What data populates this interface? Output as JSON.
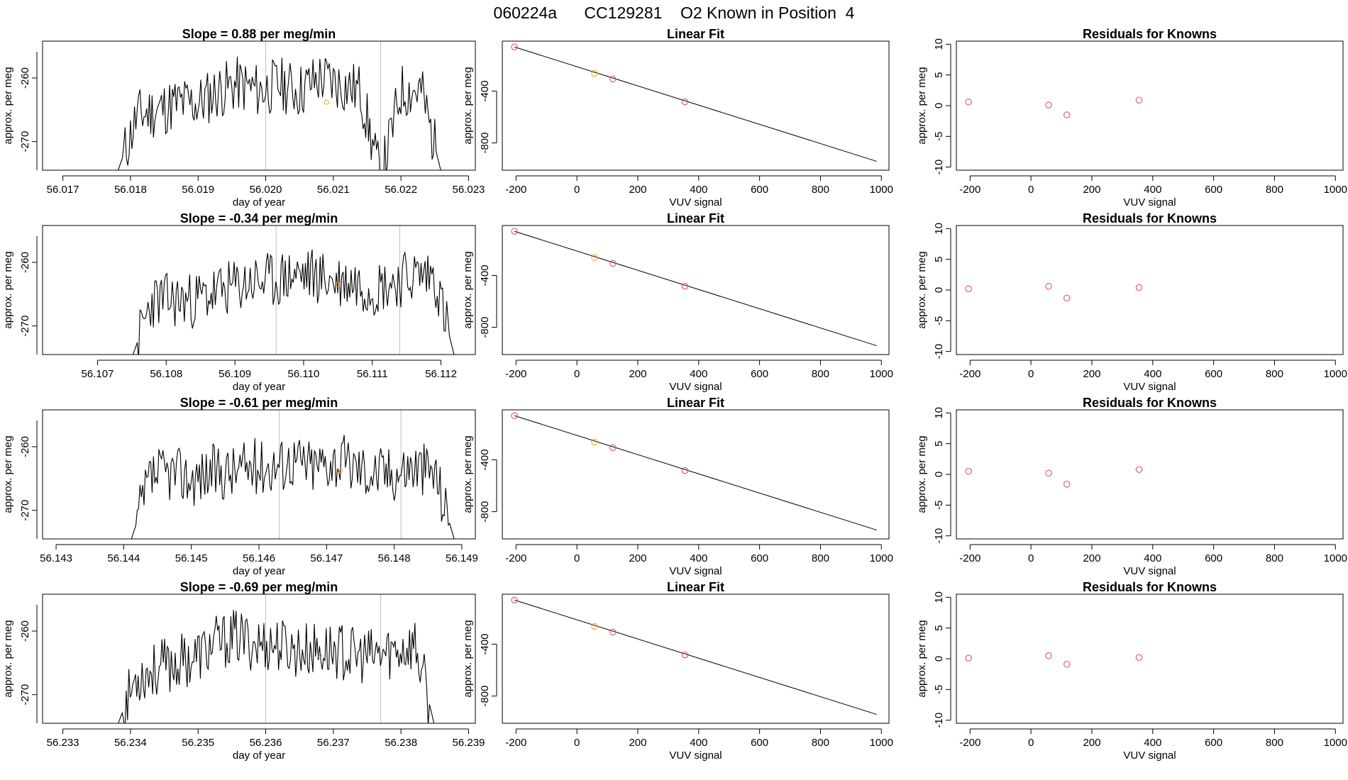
{
  "page_title": "060224a      CC129281    O2 Known in Position  4",
  "colors": {
    "line": "#000000",
    "grid": "#bebebe",
    "known_point": "#df536b",
    "highlight_point": "#f5a623"
  },
  "chart_data": [
    {
      "type": "line",
      "panel": "timeseries-1",
      "title": "Slope =  0.88  per meg/min",
      "xlabel": "day of year",
      "ylabel": "approx. per meg",
      "xlim": [
        56.0167,
        56.0231
      ],
      "ylim": [
        -274.5,
        -254.2
      ],
      "xticks": [
        {
          "v": 56.017,
          "t": "56.017"
        },
        {
          "v": 56.018,
          "t": "56.018"
        },
        {
          "v": 56.019,
          "t": "56.019"
        },
        {
          "v": 56.02,
          "t": "56.020"
        },
        {
          "v": 56.021,
          "t": "56.021"
        },
        {
          "v": 56.022,
          "t": "56.022"
        },
        {
          "v": 56.023,
          "t": "56.023"
        }
      ],
      "yticks": [
        {
          "v": -270,
          "t": "-270"
        },
        {
          "v": -260,
          "t": "-260"
        }
      ],
      "vlines": [
        56.02,
        56.0217
      ],
      "highlight": {
        "x": 56.0209,
        "y": -263.8
      },
      "series": [
        {
          "x_start": 56.0178,
          "x_end": 56.0226,
          "seed": 11,
          "base": [
            -275,
            -266,
            -265,
            -264,
            -264,
            -262,
            -261,
            -262,
            -261,
            -262,
            -260,
            -261,
            -262,
            -276,
            -262,
            -262,
            -275
          ]
        }
      ]
    },
    {
      "type": "scatter",
      "panel": "linear-fit-1",
      "title": "Linear Fit",
      "xlabel": "VUV signal",
      "ylabel": "approx. per meg",
      "xlim": [
        -245,
        1025
      ],
      "ylim": [
        -1010,
        -15
      ],
      "xticks": [
        {
          "v": -200,
          "t": "-200"
        },
        {
          "v": 0,
          "t": "0"
        },
        {
          "v": 200,
          "t": "200"
        },
        {
          "v": 400,
          "t": "400"
        },
        {
          "v": 600,
          "t": "600"
        },
        {
          "v": 800,
          "t": "800"
        },
        {
          "v": 1000,
          "t": "1000"
        }
      ],
      "yticks": [
        {
          "v": -800,
          "t": "-800"
        },
        {
          "v": -400,
          "t": "-400"
        }
      ],
      "fit_line": [
        [
          -205,
          -60
        ],
        [
          985,
          -942
        ]
      ],
      "points": [
        {
          "x": -205,
          "y": -60,
          "c": "known"
        },
        {
          "x": 58,
          "y": -263,
          "c": "highlight"
        },
        {
          "x": 118,
          "y": -307,
          "c": "known"
        },
        {
          "x": 355,
          "y": -483,
          "c": "known"
        }
      ]
    },
    {
      "type": "scatter",
      "panel": "residuals-1",
      "title": "Residuals for Knowns",
      "xlabel": "VUV signal",
      "ylabel": "approx. per meg",
      "xlim": [
        -245,
        1025
      ],
      "ylim": [
        -10.5,
        10.5
      ],
      "xticks": [
        {
          "v": -200,
          "t": "-200"
        },
        {
          "v": 0,
          "t": "0"
        },
        {
          "v": 200,
          "t": "200"
        },
        {
          "v": 400,
          "t": "400"
        },
        {
          "v": 600,
          "t": "600"
        },
        {
          "v": 800,
          "t": "800"
        },
        {
          "v": 1000,
          "t": "1000"
        }
      ],
      "yticks": [
        {
          "v": -10,
          "t": "-10"
        },
        {
          "v": -5,
          "t": "-5"
        },
        {
          "v": 0,
          "t": "0"
        },
        {
          "v": 5,
          "t": "5"
        },
        {
          "v": 10,
          "t": "10"
        }
      ],
      "points": [
        {
          "x": -205,
          "y": 0.6
        },
        {
          "x": 58,
          "y": 0.1
        },
        {
          "x": 118,
          "y": -1.5
        },
        {
          "x": 355,
          "y": 0.9
        }
      ]
    },
    {
      "type": "line",
      "panel": "timeseries-2",
      "title": "Slope =  -0.34  per meg/min",
      "xlabel": "day of year",
      "ylabel": "approx. per meg",
      "xlim": [
        56.1062,
        56.1125
      ],
      "ylim": [
        -274.5,
        -254.2
      ],
      "xticks": [
        {
          "v": 56.107,
          "t": "56.107"
        },
        {
          "v": 56.108,
          "t": "56.108"
        },
        {
          "v": 56.109,
          "t": "56.109"
        },
        {
          "v": 56.11,
          "t": "56.110"
        },
        {
          "v": 56.111,
          "t": "56.111"
        },
        {
          "v": 56.112,
          "t": "56.112"
        }
      ],
      "yticks": [
        {
          "v": -270,
          "t": "-270"
        },
        {
          "v": -260,
          "t": "-260"
        }
      ],
      "vlines": [
        56.1096,
        56.1114
      ],
      "highlight": {
        "x": 56.1105,
        "y": -263.5
      },
      "series": [
        {
          "x_start": 56.1075,
          "x_end": 56.1122,
          "seed": 23,
          "base": [
            -275,
            -266,
            -266,
            -266,
            -265,
            -264,
            -263,
            -263,
            -262,
            -262,
            -263,
            -263,
            -264,
            -263,
            -262,
            -262,
            -275
          ]
        }
      ]
    },
    {
      "type": "scatter",
      "panel": "linear-fit-2",
      "title": "Linear Fit",
      "xlabel": "VUV signal",
      "ylabel": "approx. per meg",
      "xlim": [
        -245,
        1025
      ],
      "ylim": [
        -1010,
        -15
      ],
      "xticks": [
        {
          "v": -200,
          "t": "-200"
        },
        {
          "v": 0,
          "t": "0"
        },
        {
          "v": 200,
          "t": "200"
        },
        {
          "v": 400,
          "t": "400"
        },
        {
          "v": 600,
          "t": "600"
        },
        {
          "v": 800,
          "t": "800"
        },
        {
          "v": 1000,
          "t": "1000"
        }
      ],
      "yticks": [
        {
          "v": -800,
          "t": "-800"
        },
        {
          "v": -400,
          "t": "-400"
        }
      ],
      "fit_line": [
        [
          -205,
          -60
        ],
        [
          985,
          -942
        ]
      ],
      "points": [
        {
          "x": -205,
          "y": -60,
          "c": "known"
        },
        {
          "x": 58,
          "y": -263,
          "c": "highlight"
        },
        {
          "x": 118,
          "y": -307,
          "c": "known"
        },
        {
          "x": 355,
          "y": -483,
          "c": "known"
        }
      ]
    },
    {
      "type": "scatter",
      "panel": "residuals-2",
      "title": "Residuals for Knowns",
      "xlabel": "VUV signal",
      "ylabel": "approx. per meg",
      "xlim": [
        -245,
        1025
      ],
      "ylim": [
        -10.5,
        10.5
      ],
      "xticks": [
        {
          "v": -200,
          "t": "-200"
        },
        {
          "v": 0,
          "t": "0"
        },
        {
          "v": 200,
          "t": "200"
        },
        {
          "v": 400,
          "t": "400"
        },
        {
          "v": 600,
          "t": "600"
        },
        {
          "v": 800,
          "t": "800"
        },
        {
          "v": 1000,
          "t": "1000"
        }
      ],
      "yticks": [
        {
          "v": -10,
          "t": "-10"
        },
        {
          "v": -5,
          "t": "-5"
        },
        {
          "v": 0,
          "t": "0"
        },
        {
          "v": 5,
          "t": "5"
        },
        {
          "v": 10,
          "t": "10"
        }
      ],
      "points": [
        {
          "x": -205,
          "y": 0.2
        },
        {
          "x": 58,
          "y": 0.6
        },
        {
          "x": 118,
          "y": -1.3
        },
        {
          "x": 355,
          "y": 0.4
        }
      ]
    },
    {
      "type": "line",
      "panel": "timeseries-3",
      "title": "Slope =  -0.61  per meg/min",
      "xlabel": "day of year",
      "ylabel": "approx. per meg",
      "xlim": [
        56.1428,
        56.1492
      ],
      "ylim": [
        -274.5,
        -254.2
      ],
      "xticks": [
        {
          "v": 56.143,
          "t": "56.143"
        },
        {
          "v": 56.144,
          "t": "56.144"
        },
        {
          "v": 56.145,
          "t": "56.145"
        },
        {
          "v": 56.146,
          "t": "56.146"
        },
        {
          "v": 56.147,
          "t": "56.147"
        },
        {
          "v": 56.148,
          "t": "56.148"
        },
        {
          "v": 56.149,
          "t": "56.149"
        }
      ],
      "yticks": [
        {
          "v": -270,
          "t": "-270"
        },
        {
          "v": -260,
          "t": "-260"
        }
      ],
      "vlines": [
        56.1463,
        56.1481
      ],
      "highlight": {
        "x": 56.1472,
        "y": -263.8
      },
      "series": [
        {
          "x_start": 56.1441,
          "x_end": 56.1489,
          "seed": 37,
          "base": [
            -275,
            -265,
            -264,
            -265,
            -264,
            -264,
            -263,
            -263,
            -262,
            -263,
            -262,
            -263,
            -264,
            -264,
            -263,
            -264,
            -275
          ]
        }
      ]
    },
    {
      "type": "scatter",
      "panel": "linear-fit-3",
      "title": "Linear Fit",
      "xlabel": "VUV signal",
      "ylabel": "approx. per meg",
      "xlim": [
        -245,
        1025
      ],
      "ylim": [
        -1010,
        -15
      ],
      "xticks": [
        {
          "v": -200,
          "t": "-200"
        },
        {
          "v": 0,
          "t": "0"
        },
        {
          "v": 200,
          "t": "200"
        },
        {
          "v": 400,
          "t": "400"
        },
        {
          "v": 600,
          "t": "600"
        },
        {
          "v": 800,
          "t": "800"
        },
        {
          "v": 1000,
          "t": "1000"
        }
      ],
      "yticks": [
        {
          "v": -800,
          "t": "-800"
        },
        {
          "v": -400,
          "t": "-400"
        }
      ],
      "fit_line": [
        [
          -205,
          -60
        ],
        [
          985,
          -942
        ]
      ],
      "points": [
        {
          "x": -205,
          "y": -60,
          "c": "known"
        },
        {
          "x": 58,
          "y": -263,
          "c": "highlight"
        },
        {
          "x": 118,
          "y": -307,
          "c": "known"
        },
        {
          "x": 355,
          "y": -483,
          "c": "known"
        }
      ]
    },
    {
      "type": "scatter",
      "panel": "residuals-3",
      "title": "Residuals for Knowns",
      "xlabel": "VUV signal",
      "ylabel": "approx. per meg",
      "xlim": [
        -245,
        1025
      ],
      "ylim": [
        -10.5,
        10.5
      ],
      "xticks": [
        {
          "v": -200,
          "t": "-200"
        },
        {
          "v": 0,
          "t": "0"
        },
        {
          "v": 200,
          "t": "200"
        },
        {
          "v": 400,
          "t": "400"
        },
        {
          "v": 600,
          "t": "600"
        },
        {
          "v": 800,
          "t": "800"
        },
        {
          "v": 1000,
          "t": "1000"
        }
      ],
      "yticks": [
        {
          "v": -10,
          "t": "-10"
        },
        {
          "v": -5,
          "t": "-5"
        },
        {
          "v": 0,
          "t": "0"
        },
        {
          "v": 5,
          "t": "5"
        },
        {
          "v": 10,
          "t": "10"
        }
      ],
      "points": [
        {
          "x": -205,
          "y": 0.5
        },
        {
          "x": 58,
          "y": 0.2
        },
        {
          "x": 118,
          "y": -1.6
        },
        {
          "x": 355,
          "y": 0.8
        }
      ]
    },
    {
      "type": "line",
      "panel": "timeseries-4",
      "title": "Slope =  -0.69  per meg/min",
      "xlabel": "day of year",
      "ylabel": "approx. per meg",
      "xlim": [
        56.2327,
        56.2391
      ],
      "ylim": [
        -274.5,
        -254.2
      ],
      "xticks": [
        {
          "v": 56.233,
          "t": "56.233"
        },
        {
          "v": 56.234,
          "t": "56.234"
        },
        {
          "v": 56.235,
          "t": "56.235"
        },
        {
          "v": 56.236,
          "t": "56.236"
        },
        {
          "v": 56.237,
          "t": "56.237"
        },
        {
          "v": 56.238,
          "t": "56.238"
        },
        {
          "v": 56.239,
          "t": "56.239"
        }
      ],
      "yticks": [
        {
          "v": -270,
          "t": "-270"
        },
        {
          "v": -260,
          "t": "-260"
        }
      ],
      "vlines": [
        56.236,
        56.2377
      ],
      "highlight": {
        "x": 56.2368,
        "y": -263.8
      },
      "series": [
        {
          "x_start": 56.2338,
          "x_end": 56.2385,
          "seed": 53,
          "base": [
            -275,
            -267,
            -266,
            -265,
            -264,
            -262,
            -261,
            -262,
            -262,
            -263,
            -263,
            -263,
            -264,
            -264,
            -263,
            -262,
            -275
          ]
        }
      ]
    },
    {
      "type": "scatter",
      "panel": "linear-fit-4",
      "title": "Linear Fit",
      "xlabel": "VUV signal",
      "ylabel": "approx. per meg",
      "xlim": [
        -245,
        1025
      ],
      "ylim": [
        -1010,
        -15
      ],
      "xticks": [
        {
          "v": -200,
          "t": "-200"
        },
        {
          "v": 0,
          "t": "0"
        },
        {
          "v": 200,
          "t": "200"
        },
        {
          "v": 400,
          "t": "400"
        },
        {
          "v": 600,
          "t": "600"
        },
        {
          "v": 800,
          "t": "800"
        },
        {
          "v": 1000,
          "t": "1000"
        }
      ],
      "yticks": [
        {
          "v": -800,
          "t": "-800"
        },
        {
          "v": -400,
          "t": "-400"
        }
      ],
      "fit_line": [
        [
          -205,
          -60
        ],
        [
          985,
          -942
        ]
      ],
      "points": [
        {
          "x": -205,
          "y": -60,
          "c": "known"
        },
        {
          "x": 58,
          "y": -263,
          "c": "highlight"
        },
        {
          "x": 118,
          "y": -307,
          "c": "known"
        },
        {
          "x": 355,
          "y": -483,
          "c": "known"
        }
      ]
    },
    {
      "type": "scatter",
      "panel": "residuals-4",
      "title": "Residuals for Knowns",
      "xlabel": "VUV signal",
      "ylabel": "approx. per meg",
      "xlim": [
        -245,
        1025
      ],
      "ylim": [
        -10.5,
        10.5
      ],
      "xticks": [
        {
          "v": -200,
          "t": "-200"
        },
        {
          "v": 0,
          "t": "0"
        },
        {
          "v": 200,
          "t": "200"
        },
        {
          "v": 400,
          "t": "400"
        },
        {
          "v": 600,
          "t": "600"
        },
        {
          "v": 800,
          "t": "800"
        },
        {
          "v": 1000,
          "t": "1000"
        }
      ],
      "yticks": [
        {
          "v": -10,
          "t": "-10"
        },
        {
          "v": -5,
          "t": "-5"
        },
        {
          "v": 0,
          "t": "0"
        },
        {
          "v": 5,
          "t": "5"
        },
        {
          "v": 10,
          "t": "10"
        }
      ],
      "points": [
        {
          "x": -205,
          "y": 0.1
        },
        {
          "x": 58,
          "y": 0.5
        },
        {
          "x": 118,
          "y": -0.9
        },
        {
          "x": 355,
          "y": 0.2
        }
      ]
    }
  ]
}
